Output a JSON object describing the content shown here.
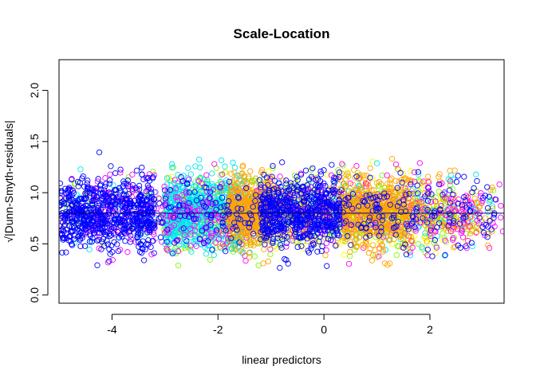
{
  "chart_data": {
    "type": "scatter",
    "title": "Scale-Location",
    "xlabel": "linear predictors",
    "ylabel": "√|Dunn-Smyth-residuals|",
    "xlim": [
      -5.0,
      3.4
    ],
    "ylim": [
      -0.08,
      2.3
    ],
    "x_ticks": [
      -4,
      -2,
      0,
      2
    ],
    "x_tick_labels": [
      "-4",
      "-2",
      "0",
      "2"
    ],
    "y_ticks": [
      0.0,
      0.5,
      1.0,
      1.5,
      2.0
    ],
    "y_tick_labels": [
      "0.0",
      "0.5",
      "1.0",
      "1.5",
      "2.0"
    ],
    "grid": false,
    "legend": "none",
    "marker": "open-circle",
    "palette": [
      "#0000ff",
      "#ffa500",
      "#00e5ee",
      "#ff00ff",
      "#7cfc00",
      "#ffff00",
      "#00ff7f",
      "#ff0000",
      "#9400d3",
      "#00ced1"
    ],
    "reference_line": {
      "type": "smoother",
      "y": 0.8,
      "color": "#000080"
    },
    "series": [
      {
        "color": "#0000ff",
        "x_range": [
          -5.0,
          3.3
        ],
        "y_range": [
          0.0,
          1.9
        ],
        "dense_x": [
          [
            -5.0,
            -3.2
          ],
          [
            -1.2,
            0.3
          ]
        ]
      },
      {
        "color": "#ffa500",
        "x_range": [
          -2.0,
          3.2
        ],
        "y_range": [
          0.0,
          2.0
        ],
        "dense_x": [
          [
            -1.8,
            -1.0
          ],
          [
            0.3,
            1.6
          ]
        ]
      },
      {
        "color": "#00e5ee",
        "x_range": [
          -5.0,
          3.2
        ],
        "y_range": [
          0.0,
          2.0
        ],
        "dense_x": [
          [
            -3.0,
            -1.5
          ]
        ]
      },
      {
        "color": "#ff00ff",
        "x_range": [
          -5.0,
          3.4
        ],
        "y_range": [
          0.0,
          2.1
        ],
        "dense_x": [
          [
            -4.5,
            2.8
          ]
        ]
      },
      {
        "color": "#7cfc00",
        "x_range": [
          -5.0,
          3.2
        ],
        "y_range": [
          0.0,
          2.1
        ],
        "dense_x": [
          [
            -3.0,
            2.5
          ]
        ]
      },
      {
        "color": "#ffff00",
        "x_range": [
          -3.0,
          3.0
        ],
        "y_range": [
          0.0,
          2.0
        ],
        "dense_x": [
          [
            -2.5,
            2.0
          ]
        ]
      }
    ]
  }
}
